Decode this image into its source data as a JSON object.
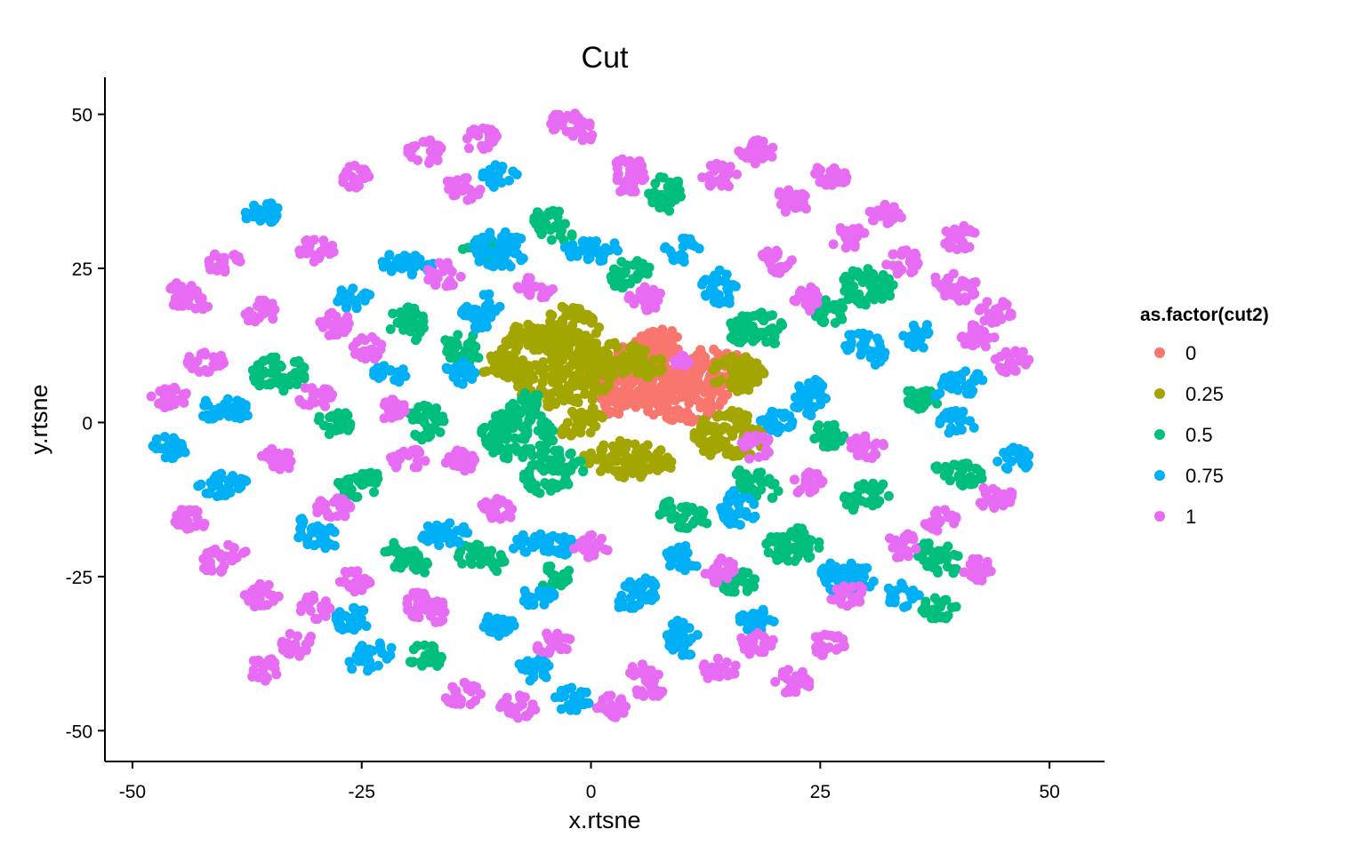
{
  "chart_data": {
    "type": "scatter",
    "title": "Cut",
    "xlabel": "x.rtsne",
    "ylabel": "y.rtsne",
    "xlim": [
      -53,
      56
    ],
    "ylim": [
      -55,
      56
    ],
    "xticks": [
      -50,
      -25,
      0,
      25,
      50
    ],
    "yticks": [
      -50,
      -25,
      0,
      25,
      50
    ],
    "grid": false,
    "legend_position": "right",
    "legend_title": "as.factor(cut2)",
    "series": [
      {
        "name": "0",
        "color": "#F8766D",
        "clusters": [
          [
            5,
            8,
            5,
            6
          ],
          [
            10,
            5,
            5,
            5
          ],
          [
            13,
            9,
            3,
            4
          ],
          [
            7,
            13,
            3,
            2
          ],
          [
            3,
            3,
            2,
            2
          ]
        ]
      },
      {
        "name": "0.25",
        "color": "#A3A500",
        "clusters": [
          [
            -4,
            9,
            6,
            7
          ],
          [
            -2,
            16,
            3,
            3
          ],
          [
            3,
            10,
            3,
            5
          ],
          [
            4,
            -6,
            3,
            5
          ],
          [
            15,
            -2,
            4,
            4
          ],
          [
            16,
            8,
            3,
            3
          ],
          [
            -1,
            0,
            2,
            3
          ],
          [
            -10,
            9,
            2,
            2
          ],
          [
            -7,
            14,
            2,
            2
          ]
        ]
      },
      {
        "name": "0.5",
        "color": "#00BF7D",
        "clusters": [
          [
            -8,
            -2,
            4,
            4
          ],
          [
            -4,
            -8,
            3,
            4
          ],
          [
            -18,
            0,
            3,
            2
          ],
          [
            -25,
            -10,
            3,
            2
          ],
          [
            -14,
            12,
            2,
            3
          ],
          [
            -34,
            8,
            3,
            3
          ],
          [
            -20,
            16,
            2,
            3
          ],
          [
            -4,
            32,
            3,
            2
          ],
          [
            4,
            24,
            3,
            2
          ],
          [
            10,
            -15,
            3,
            2
          ],
          [
            18,
            -10,
            3,
            2
          ],
          [
            18,
            15,
            3,
            3
          ],
          [
            26,
            18,
            2,
            2
          ],
          [
            30,
            22,
            3,
            3
          ],
          [
            22,
            -20,
            3,
            3
          ],
          [
            30,
            -12,
            3,
            2
          ],
          [
            38,
            -22,
            3,
            2
          ],
          [
            40,
            -8,
            2,
            3
          ],
          [
            -12,
            -22,
            3,
            2
          ],
          [
            -20,
            -22,
            2,
            3
          ],
          [
            -18,
            -38,
            2,
            2
          ],
          [
            -12,
            28,
            2,
            2
          ],
          [
            8,
            37,
            2,
            3
          ],
          [
            -7,
            3,
            2,
            2
          ],
          [
            36,
            4,
            2,
            2
          ],
          [
            26,
            -2,
            2,
            2
          ],
          [
            -28,
            0,
            2,
            2
          ],
          [
            38,
            -30,
            2,
            2
          ],
          [
            16,
            -26,
            2,
            2
          ],
          [
            -4,
            -25,
            2,
            2
          ]
        ]
      },
      {
        "name": "0.75",
        "color": "#00B0F6",
        "clusters": [
          [
            -5,
            -20,
            4,
            2
          ],
          [
            0,
            28,
            3,
            2
          ],
          [
            5,
            -28,
            3,
            2
          ],
          [
            -16,
            -18,
            2,
            3
          ],
          [
            -30,
            -18,
            3,
            2
          ],
          [
            -40,
            -10,
            3,
            2
          ],
          [
            -46,
            -4,
            2,
            2
          ],
          [
            -40,
            2,
            3,
            2
          ],
          [
            -36,
            34,
            2,
            2
          ],
          [
            -20,
            26,
            2,
            3
          ],
          [
            -10,
            28,
            3,
            3
          ],
          [
            -12,
            18,
            2,
            3
          ],
          [
            -14,
            8,
            2,
            2
          ],
          [
            -26,
            20,
            2,
            2
          ],
          [
            -10,
            40,
            2,
            2
          ],
          [
            10,
            28,
            2,
            2
          ],
          [
            14,
            22,
            2,
            3
          ],
          [
            24,
            4,
            3,
            2
          ],
          [
            30,
            12,
            3,
            2
          ],
          [
            36,
            14,
            2,
            2
          ],
          [
            40,
            6,
            3,
            2
          ],
          [
            40,
            0,
            2,
            2
          ],
          [
            46,
            -6,
            2,
            2
          ],
          [
            28,
            -25,
            3,
            3
          ],
          [
            34,
            -28,
            2,
            2
          ],
          [
            16,
            -14,
            2,
            3
          ],
          [
            10,
            -22,
            2,
            2
          ],
          [
            -6,
            -40,
            2,
            2
          ],
          [
            -10,
            -33,
            2,
            2
          ],
          [
            -24,
            -38,
            3,
            2
          ],
          [
            -26,
            -32,
            2,
            2
          ],
          [
            -2,
            -45,
            2,
            2
          ],
          [
            10,
            -35,
            3,
            2
          ],
          [
            18,
            -32,
            2,
            2
          ],
          [
            -22,
            8,
            2,
            2
          ],
          [
            -6,
            -28,
            2,
            2
          ],
          [
            20,
            0,
            2,
            2
          ]
        ]
      },
      {
        "name": "1",
        "color": "#E76BF3",
        "clusters": [
          [
            -46,
            4,
            2,
            2
          ],
          [
            -42,
            10,
            2,
            2
          ],
          [
            -44,
            20,
            2,
            3
          ],
          [
            -40,
            26,
            2,
            2
          ],
          [
            -36,
            18,
            2,
            2
          ],
          [
            -30,
            28,
            2,
            2
          ],
          [
            -28,
            16,
            2,
            2
          ],
          [
            -26,
            40,
            2,
            2
          ],
          [
            -18,
            44,
            2,
            2
          ],
          [
            -14,
            38,
            2,
            2
          ],
          [
            -12,
            46,
            2,
            2
          ],
          [
            -2,
            48,
            3,
            2
          ],
          [
            4,
            40,
            2,
            3
          ],
          [
            14,
            40,
            2,
            2
          ],
          [
            18,
            44,
            2,
            2
          ],
          [
            22,
            36,
            2,
            2
          ],
          [
            26,
            40,
            2,
            2
          ],
          [
            32,
            34,
            2,
            2
          ],
          [
            34,
            26,
            2,
            2
          ],
          [
            40,
            22,
            2,
            3
          ],
          [
            42,
            14,
            2,
            2
          ],
          [
            46,
            10,
            2,
            2
          ],
          [
            44,
            18,
            2,
            2
          ],
          [
            40,
            30,
            2,
            2
          ],
          [
            28,
            30,
            2,
            2
          ],
          [
            20,
            26,
            2,
            2
          ],
          [
            24,
            20,
            2,
            2
          ],
          [
            -34,
            -6,
            2,
            2
          ],
          [
            -40,
            -22,
            2,
            3
          ],
          [
            -44,
            -16,
            2,
            2
          ],
          [
            -36,
            -28,
            2,
            2
          ],
          [
            -30,
            -30,
            2,
            2
          ],
          [
            -32,
            -36,
            2,
            2
          ],
          [
            -26,
            -26,
            2,
            2
          ],
          [
            -18,
            -30,
            2,
            3
          ],
          [
            -14,
            -44,
            2,
            2
          ],
          [
            -8,
            -46,
            2,
            2
          ],
          [
            -4,
            -36,
            2,
            2
          ],
          [
            2,
            -46,
            2,
            2
          ],
          [
            6,
            -42,
            2,
            3
          ],
          [
            14,
            -40,
            2,
            2
          ],
          [
            18,
            -36,
            2,
            2
          ],
          [
            22,
            -42,
            2,
            2
          ],
          [
            26,
            -36,
            2,
            2
          ],
          [
            28,
            -28,
            2,
            2
          ],
          [
            34,
            -20,
            2,
            2
          ],
          [
            38,
            -16,
            2,
            2
          ],
          [
            44,
            -12,
            2,
            2
          ],
          [
            42,
            -24,
            2,
            2
          ],
          [
            24,
            -10,
            2,
            2
          ],
          [
            -20,
            -6,
            2,
            2
          ],
          [
            -22,
            2,
            2,
            2
          ],
          [
            -30,
            4,
            2,
            2
          ],
          [
            -24,
            12,
            2,
            2
          ],
          [
            -28,
            -14,
            2,
            2
          ],
          [
            -14,
            -6,
            2,
            2
          ],
          [
            -10,
            -14,
            2,
            2
          ],
          [
            6,
            20,
            2,
            2
          ],
          [
            10,
            10,
            1,
            1
          ],
          [
            18,
            -4,
            2,
            2
          ],
          [
            14,
            -24,
            2,
            2
          ],
          [
            0,
            -20,
            2,
            2
          ],
          [
            30,
            -4,
            2,
            2
          ],
          [
            -6,
            22,
            2,
            2
          ],
          [
            -16,
            24,
            2,
            2
          ],
          [
            -36,
            -40,
            2,
            2
          ]
        ]
      }
    ]
  }
}
